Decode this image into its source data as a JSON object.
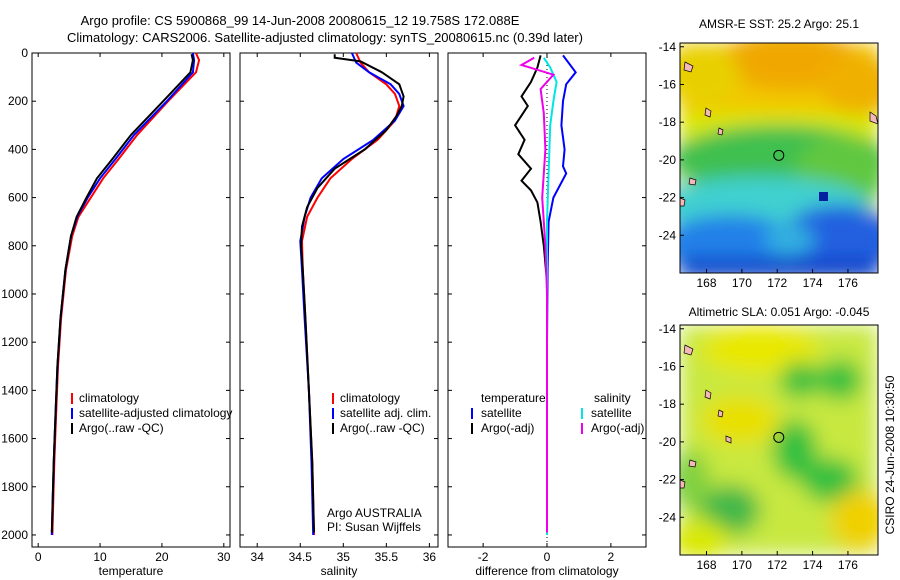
{
  "header": {
    "line1": "Argo profile: CS 5900868_99 14-Jun-2008 20080615_12 19.758S 172.088E",
    "line2": "Climatology: CARS2006. Satellite-adjusted climatology: synTS_20080615.nc (0.39d later)"
  },
  "side_text": "CSIRO 24-Jun-2008 10:30:50",
  "colors": {
    "climatology": "#ff0000",
    "satellite": "#0000ff",
    "argo": "#000000",
    "salinity_satellite": "#00e5e5",
    "salinity_argo": "#ee00ee"
  },
  "chart_data": [
    {
      "type": "line",
      "name": "temperature-profile",
      "xlabel": "temperature",
      "xlim": [
        -1,
        31
      ],
      "ylim": [
        2050,
        0
      ],
      "xticks": [
        0,
        10,
        20,
        30
      ],
      "yticks": [
        0,
        200,
        400,
        600,
        800,
        1000,
        1200,
        1400,
        1600,
        1800,
        2000
      ],
      "legend": {
        "placement": "lower-center",
        "entries": [
          "climatology",
          "satellite-adjusted climatology",
          "Argo(..raw -QC)"
        ]
      },
      "series": [
        {
          "color_key": "climatology",
          "points": [
            [
              25.5,
              0
            ],
            [
              26,
              30
            ],
            [
              25.5,
              80
            ],
            [
              21,
              200
            ],
            [
              16,
              340
            ],
            [
              13,
              440
            ],
            [
              10.5,
              520
            ],
            [
              8.5,
              600
            ],
            [
              6.5,
              680
            ],
            [
              5.5,
              760
            ],
            [
              4.5,
              900
            ],
            [
              3.7,
              1100
            ],
            [
              3.2,
              1300
            ],
            [
              2.9,
              1500
            ],
            [
              2.6,
              1700
            ],
            [
              2.4,
              1900
            ],
            [
              2.3,
              2000
            ]
          ]
        },
        {
          "color_key": "satellite",
          "points": [
            [
              25,
              0
            ],
            [
              25.2,
              30
            ],
            [
              25,
              80
            ],
            [
              20.8,
              200
            ],
            [
              15.5,
              340
            ],
            [
              12.5,
              440
            ],
            [
              10,
              520
            ],
            [
              8,
              600
            ],
            [
              6.3,
              680
            ],
            [
              5.3,
              760
            ],
            [
              4.4,
              900
            ],
            [
              3.6,
              1100
            ],
            [
              3.1,
              1300
            ],
            [
              2.8,
              1500
            ],
            [
              2.5,
              1700
            ],
            [
              2.3,
              1900
            ],
            [
              2.2,
              2000
            ]
          ]
        },
        {
          "color_key": "argo",
          "points": [
            [
              24.8,
              5
            ],
            [
              25,
              30
            ],
            [
              24.6,
              80
            ],
            [
              20.2,
              200
            ],
            [
              15,
              340
            ],
            [
              12,
              440
            ],
            [
              9.5,
              520
            ],
            [
              7.8,
              600
            ],
            [
              6.2,
              680
            ],
            [
              5.3,
              760
            ],
            [
              4.4,
              900
            ],
            [
              3.6,
              1100
            ],
            [
              3.1,
              1300
            ],
            [
              2.8,
              1500
            ],
            [
              2.5,
              1700
            ],
            [
              2.3,
              1900
            ],
            [
              2.2,
              1990
            ]
          ]
        }
      ]
    },
    {
      "type": "line",
      "name": "salinity-profile",
      "xlabel": "salinity",
      "xlim": [
        33.8,
        36.1
      ],
      "ylim": [
        2050,
        0
      ],
      "xticks": [
        34,
        34.5,
        35,
        35.5,
        36
      ],
      "yticks": [
        0,
        200,
        400,
        600,
        800,
        1000,
        1200,
        1400,
        1600,
        1800,
        2000
      ],
      "legend": {
        "placement": "lower-center",
        "entries": [
          "climatology",
          "satellite adj. clim.",
          "Argo(..raw -QC)"
        ]
      },
      "annotation": [
        "Argo AUSTRALIA",
        "PI: Susan Wijffels"
      ],
      "series": [
        {
          "color_key": "climatology",
          "points": [
            [
              35.15,
              0
            ],
            [
              35.2,
              40
            ],
            [
              35.3,
              80
            ],
            [
              35.5,
              130
            ],
            [
              35.6,
              170
            ],
            [
              35.65,
              220
            ],
            [
              35.6,
              280
            ],
            [
              35.4,
              360
            ],
            [
              35.1,
              440
            ],
            [
              34.85,
              520
            ],
            [
              34.7,
              600
            ],
            [
              34.58,
              680
            ],
            [
              34.52,
              780
            ],
            [
              34.53,
              900
            ],
            [
              34.56,
              1100
            ],
            [
              34.6,
              1400
            ],
            [
              34.64,
              1700
            ],
            [
              34.66,
              2000
            ]
          ]
        },
        {
          "color_key": "satellite",
          "points": [
            [
              35.1,
              0
            ],
            [
              35.15,
              40
            ],
            [
              35.3,
              80
            ],
            [
              35.55,
              130
            ],
            [
              35.65,
              170
            ],
            [
              35.7,
              220
            ],
            [
              35.6,
              280
            ],
            [
              35.35,
              360
            ],
            [
              35.0,
              440
            ],
            [
              34.75,
              520
            ],
            [
              34.62,
              600
            ],
            [
              34.55,
              680
            ],
            [
              34.5,
              780
            ],
            [
              34.52,
              900
            ],
            [
              34.55,
              1100
            ],
            [
              34.6,
              1400
            ],
            [
              34.63,
              1700
            ],
            [
              34.65,
              2000
            ]
          ]
        },
        {
          "color_key": "argo",
          "points": [
            [
              34.9,
              5
            ],
            [
              34.9,
              20
            ],
            [
              35.2,
              35
            ],
            [
              35.45,
              80
            ],
            [
              35.65,
              130
            ],
            [
              35.7,
              180
            ],
            [
              35.68,
              220
            ],
            [
              35.62,
              260
            ],
            [
              35.5,
              320
            ],
            [
              35.25,
              400
            ],
            [
              34.9,
              480
            ],
            [
              34.7,
              560
            ],
            [
              34.58,
              640
            ],
            [
              34.52,
              720
            ],
            [
              34.51,
              800
            ],
            [
              34.53,
              900
            ],
            [
              34.56,
              1100
            ],
            [
              34.6,
              1400
            ],
            [
              34.64,
              1700
            ],
            [
              34.66,
              1990
            ]
          ]
        }
      ]
    },
    {
      "type": "line",
      "name": "difference-profile",
      "xlabel": "difference from climatology",
      "xlim": [
        -3.1,
        3.1
      ],
      "ylim": [
        2050,
        0
      ],
      "xticks": [
        -2,
        0,
        2
      ],
      "yticks": [
        0,
        200,
        400,
        600,
        800,
        1000,
        1200,
        1400,
        1600,
        1800,
        2000
      ],
      "legend": {
        "placement": "lower-center",
        "groups": [
          {
            "heading": "temperature",
            "entries": [
              "satellite",
              "Argo(-adj)"
            ]
          },
          {
            "heading": "salinity",
            "entries": [
              "satellite",
              "Argo(-adj)"
            ]
          }
        ]
      },
      "series": [
        {
          "color_key": "satellite",
          "points": [
            [
              0.5,
              10
            ],
            [
              0.9,
              80
            ],
            [
              0.6,
              130
            ],
            [
              0.5,
              200
            ],
            [
              0.45,
              300
            ],
            [
              0.55,
              400
            ],
            [
              0.5,
              470
            ],
            [
              0.6,
              500
            ],
            [
              0.2,
              600
            ],
            [
              0.05,
              700
            ],
            [
              0.02,
              900
            ],
            [
              0,
              1200
            ],
            [
              0,
              2000
            ]
          ]
        },
        {
          "color_key": "argo",
          "points": [
            [
              -0.2,
              10
            ],
            [
              -0.3,
              60
            ],
            [
              -0.5,
              120
            ],
            [
              -0.8,
              180
            ],
            [
              -0.6,
              220
            ],
            [
              -1.0,
              300
            ],
            [
              -0.7,
              360
            ],
            [
              -0.9,
              420
            ],
            [
              -0.5,
              480
            ],
            [
              -0.8,
              530
            ],
            [
              -0.5,
              570
            ],
            [
              -0.3,
              620
            ],
            [
              -0.2,
              700
            ],
            [
              -0.1,
              800
            ],
            [
              0,
              950
            ],
            [
              0,
              1200
            ],
            [
              0,
              1990
            ]
          ]
        },
        {
          "color_key": "salinity_satellite",
          "points": [
            [
              -0.1,
              20
            ],
            [
              0.1,
              60
            ],
            [
              0.3,
              120
            ],
            [
              0.2,
              200
            ],
            [
              0.1,
              300
            ],
            [
              0.05,
              500
            ],
            [
              0,
              700
            ],
            [
              0,
              2000
            ]
          ]
        },
        {
          "color_key": "salinity_argo",
          "points": [
            [
              -0.4,
              20
            ],
            [
              -0.8,
              50
            ],
            [
              0.2,
              90
            ],
            [
              -0.2,
              150
            ],
            [
              -0.1,
              250
            ],
            [
              -0.05,
              400
            ],
            [
              -0.15,
              600
            ],
            [
              -0.05,
              800
            ],
            [
              0,
              1000
            ],
            [
              0,
              1990
            ]
          ]
        }
      ]
    },
    {
      "type": "heatmap",
      "name": "sst-map",
      "title": "AMSR-E SST: 25.2  Argo: 25.1",
      "xlim": [
        166.5,
        177.7
      ],
      "ylim": [
        -26,
        -13.8
      ],
      "xticks": [
        168,
        170,
        172,
        174,
        176
      ],
      "yticks": [
        -14,
        -16,
        -18,
        -20,
        -22,
        -24
      ],
      "marker": {
        "lon": 172.088,
        "lat": -19.758
      }
    },
    {
      "type": "heatmap",
      "name": "sla-map",
      "title": "Altimetric SLA: 0.051  Argo: -0.045",
      "xlim": [
        166.5,
        177.7
      ],
      "ylim": [
        -26,
        -13.8
      ],
      "xticks": [
        168,
        170,
        172,
        174,
        176
      ],
      "yticks": [
        -14,
        -16,
        -18,
        -20,
        -22,
        -24
      ],
      "marker": {
        "lon": 172.088,
        "lat": -19.758
      }
    }
  ]
}
